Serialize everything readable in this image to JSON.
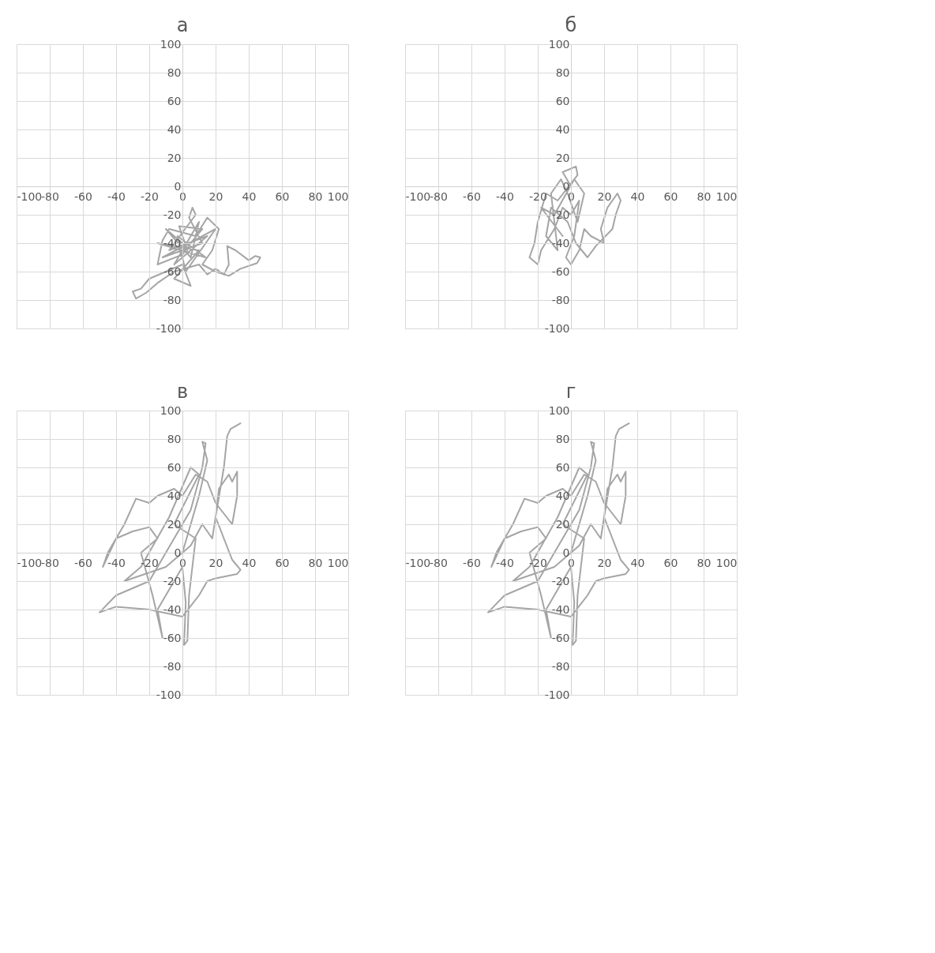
{
  "chart_data": [
    {
      "type": "line",
      "title": "а",
      "xlim": [
        -100,
        100
      ],
      "ylim": [
        -100,
        100
      ],
      "xticks": [
        -100,
        -80,
        -60,
        -40,
        -20,
        0,
        20,
        40,
        60,
        80,
        100
      ],
      "yticks": [
        -100,
        -80,
        -60,
        -40,
        -20,
        0,
        20,
        40,
        60,
        80,
        100
      ],
      "grid": true,
      "series": [
        {
          "color": "#a5a5a5",
          "x": [
            0,
            -10,
            5,
            10,
            -5,
            15,
            -8,
            8,
            6,
            4,
            12,
            -12,
            20,
            2,
            -3,
            14,
            -15,
            10,
            -5,
            5,
            0,
            -10,
            -20,
            -25,
            -30,
            -28,
            -22,
            -15,
            -5,
            10,
            15,
            20,
            25,
            28,
            27,
            32,
            40,
            44,
            47,
            45,
            35,
            28,
            20,
            12,
            18,
            22,
            15,
            8,
            -8,
            -12,
            -15,
            0,
            5,
            12,
            -2,
            3
          ],
          "values": [
            -40,
            -30,
            -50,
            -25,
            -55,
            -35,
            -45,
            -20,
            -15,
            -22,
            -40,
            -50,
            -30,
            -60,
            -35,
            -50,
            -40,
            -45,
            -65,
            -70,
            -55,
            -60,
            -65,
            -72,
            -74,
            -79,
            -75,
            -68,
            -60,
            -55,
            -62,
            -58,
            -62,
            -55,
            -42,
            -45,
            -52,
            -49,
            -50,
            -54,
            -58,
            -63,
            -60,
            -55,
            -45,
            -30,
            -22,
            -35,
            -30,
            -38,
            -55,
            -48,
            -40,
            -30,
            -28,
            -45
          ]
        }
      ]
    },
    {
      "type": "line",
      "title": "б",
      "xlim": [
        -100,
        100
      ],
      "ylim": [
        -100,
        100
      ],
      "xticks": [
        -100,
        -80,
        -60,
        -40,
        -20,
        0,
        20,
        40,
        60,
        80,
        100
      ],
      "yticks": [
        -100,
        -80,
        -60,
        -40,
        -20,
        0,
        20,
        40,
        60,
        80,
        100
      ],
      "grid": true,
      "series": [
        {
          "color": "#a5a5a5",
          "x": [
            0,
            -5,
            3,
            4,
            -8,
            -15,
            -20,
            -22,
            -25,
            -20,
            -18,
            -10,
            -5,
            0,
            5,
            2,
            -3,
            0,
            5,
            8,
            12,
            20,
            18,
            22,
            28,
            30,
            27,
            25,
            15,
            10,
            3,
            -2,
            -12,
            -15,
            -8,
            -12,
            -6,
            -2,
            4,
            8,
            2,
            -10,
            -18,
            -5
          ],
          "values": [
            0,
            10,
            14,
            8,
            -10,
            -5,
            -25,
            -40,
            -50,
            -55,
            -45,
            -30,
            -15,
            -20,
            -10,
            -35,
            -50,
            -55,
            -45,
            -30,
            -35,
            -40,
            -30,
            -15,
            -5,
            -10,
            -20,
            -30,
            -42,
            -50,
            -40,
            -25,
            -15,
            -35,
            -45,
            -5,
            5,
            -5,
            -25,
            -5,
            5,
            -20,
            -15,
            -35
          ]
        }
      ]
    },
    {
      "type": "line",
      "title": "в",
      "xlim": [
        -100,
        100
      ],
      "ylim": [
        -100,
        100
      ],
      "xticks": [
        -100,
        -80,
        -60,
        -40,
        -20,
        0,
        20,
        40,
        60,
        80,
        100
      ],
      "yticks": [
        -100,
        -80,
        -60,
        -40,
        -20,
        0,
        20,
        40,
        60,
        80,
        100
      ],
      "grid": true,
      "series": [
        {
          "color": "#a5a5a5",
          "x": [
            0,
            10,
            15,
            12,
            14,
            12,
            5,
            -10,
            -20,
            -30,
            -40,
            -50,
            -40,
            -20,
            0,
            10,
            15,
            20,
            33,
            35,
            30,
            25,
            20,
            22,
            28,
            30,
            33,
            33,
            30,
            20,
            15,
            8,
            0,
            -5,
            -15,
            -20,
            -28,
            -35,
            -45,
            -48,
            -40,
            -30,
            -20,
            -15,
            -25,
            -18,
            -15,
            -12,
            -15,
            -5,
            0,
            2,
            1,
            3,
            4,
            8,
            -5,
            10,
            5,
            -8,
            -25,
            -35,
            -10,
            5,
            12,
            18,
            20,
            25,
            27,
            29,
            35
          ],
          "values": [
            0,
            40,
            65,
            78,
            77,
            60,
            30,
            0,
            -20,
            -25,
            -30,
            -42,
            -38,
            -40,
            -45,
            -30,
            -20,
            -18,
            -15,
            -12,
            -5,
            10,
            25,
            45,
            55,
            50,
            57,
            40,
            20,
            35,
            50,
            55,
            40,
            45,
            40,
            35,
            38,
            20,
            0,
            -10,
            10,
            15,
            18,
            10,
            0,
            -30,
            -45,
            -60,
            -40,
            -20,
            -10,
            -35,
            -65,
            -62,
            -30,
            10,
            20,
            55,
            60,
            25,
            -10,
            -20,
            -10,
            5,
            20,
            10,
            25,
            60,
            82,
            87,
            91
          ]
        }
      ]
    },
    {
      "type": "line",
      "title": "г",
      "xlim": [
        -100,
        100
      ],
      "ylim": [
        -100,
        100
      ],
      "xticks": [
        -100,
        -80,
        -60,
        -40,
        -20,
        0,
        20,
        40,
        60,
        80,
        100
      ],
      "yticks": [
        -100,
        -80,
        -60,
        -40,
        -20,
        0,
        20,
        40,
        60,
        80,
        100
      ],
      "grid": true,
      "series": [
        {
          "color": "#a5a5a5",
          "x": [
            0,
            10,
            15,
            12,
            14,
            12,
            5,
            -10,
            -20,
            -30,
            -40,
            -50,
            -40,
            -20,
            0,
            10,
            15,
            20,
            33,
            35,
            30,
            25,
            20,
            22,
            28,
            30,
            33,
            33,
            30,
            20,
            15,
            8,
            0,
            -5,
            -15,
            -20,
            -28,
            -35,
            -45,
            -48,
            -40,
            -30,
            -20,
            -15,
            -25,
            -18,
            -15,
            -12,
            -15,
            -5,
            0,
            2,
            1,
            3,
            4,
            8,
            -5,
            10,
            5,
            -8,
            -25,
            -35,
            -10,
            5,
            12,
            18,
            20,
            25,
            27,
            29,
            35
          ],
          "values": [
            0,
            40,
            65,
            78,
            77,
            60,
            30,
            0,
            -20,
            -25,
            -30,
            -42,
            -38,
            -40,
            -45,
            -30,
            -20,
            -18,
            -15,
            -12,
            -5,
            10,
            25,
            45,
            55,
            50,
            57,
            40,
            20,
            35,
            50,
            55,
            40,
            45,
            40,
            35,
            38,
            20,
            0,
            -10,
            10,
            15,
            18,
            10,
            0,
            -30,
            -45,
            -60,
            -40,
            -20,
            -10,
            -35,
            -65,
            -62,
            -30,
            10,
            20,
            55,
            60,
            25,
            -10,
            -20,
            -10,
            5,
            20,
            10,
            25,
            60,
            82,
            87,
            91
          ]
        }
      ]
    }
  ]
}
